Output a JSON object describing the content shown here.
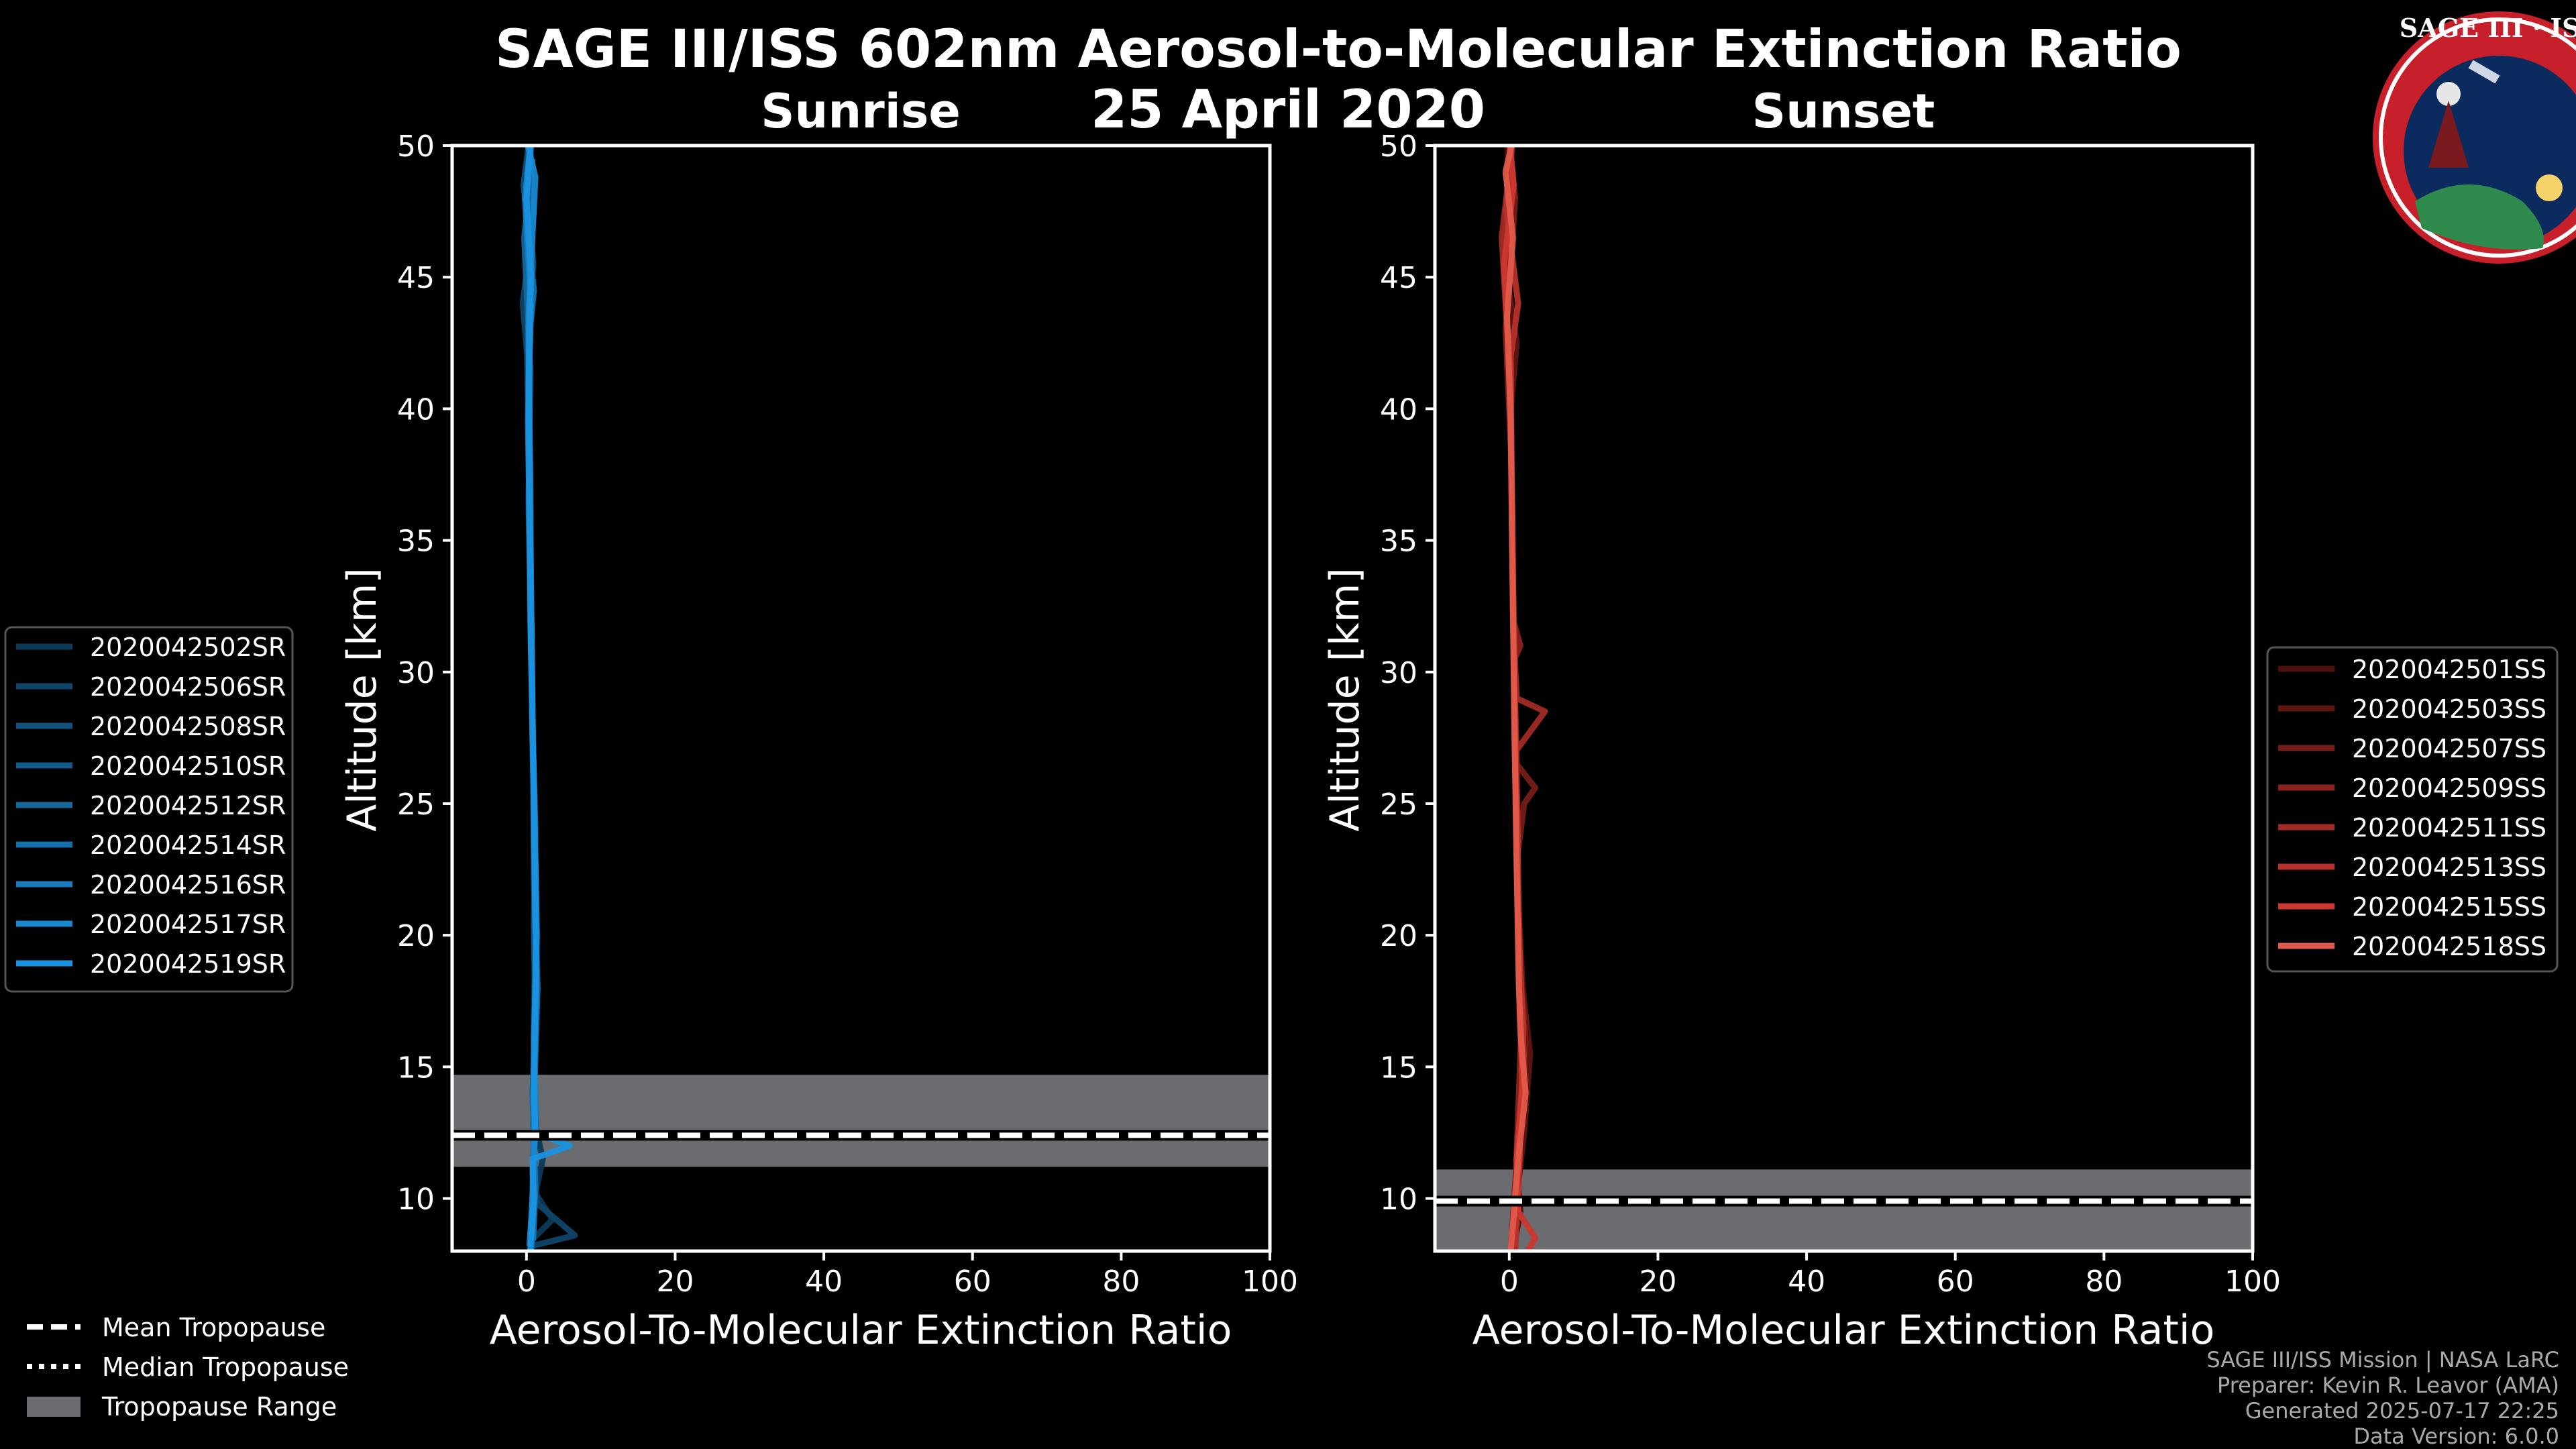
{
  "title": "SAGE III/ISS 602nm Aerosol-to-Molecular Extinction Ratio",
  "date": "25 April 2020",
  "logo": {
    "text": "SAGE III · ISS"
  },
  "colors": {
    "background": "#000000",
    "sunrise_palette": [
      "#0d3a57",
      "#0f4568",
      "#115079",
      "#125b8a",
      "#14669b",
      "#1571ac",
      "#167cbd",
      "#1887ce",
      "#1a92df"
    ],
    "sunset_palette": [
      "#4a0e0c",
      "#5f1512",
      "#751c18",
      "#8a231e",
      "#a02a24",
      "#b5312a",
      "#cb3830",
      "#e05a4a"
    ],
    "tropopause_band": "#6b6c70",
    "text": "#ffffff",
    "footer_text": "#aaaaaa"
  },
  "chart_data": [
    {
      "name": "sunrise",
      "type": "line",
      "title": "Sunrise",
      "xlabel": "Aerosol-To-Molecular Extinction Ratio",
      "ylabel": "Altitude [km]",
      "xlim": [
        -10,
        100
      ],
      "ylim": [
        8,
        50
      ],
      "xticks": [
        0,
        20,
        40,
        60,
        80,
        100
      ],
      "yticks": [
        10,
        15,
        20,
        25,
        30,
        35,
        40,
        45,
        50
      ],
      "tropopause": {
        "mean": 12.4,
        "median": 12.4,
        "range": [
          11.2,
          14.7
        ]
      },
      "series": [
        {
          "name": "2020042502SR",
          "values": [
            [
              1.0,
              8.5
            ],
            [
              3.5,
              9.2
            ],
            [
              1.2,
              10.2
            ],
            [
              2.2,
              11.5
            ],
            [
              1.0,
              13.0
            ],
            [
              1.1,
              16.0
            ],
            [
              1.2,
              20.0
            ],
            [
              1.0,
              25.0
            ],
            [
              0.7,
              30.0
            ],
            [
              0.4,
              35.0
            ],
            [
              0.2,
              40.0
            ],
            [
              0.3,
              45.0
            ],
            [
              0.8,
              48.0
            ],
            [
              0.5,
              50.0
            ]
          ]
        },
        {
          "name": "2020042506SR",
          "values": [
            [
              0.8,
              8.2
            ],
            [
              6.5,
              8.6
            ],
            [
              1.5,
              9.8
            ],
            [
              1.0,
              11.0
            ],
            [
              0.9,
              13.5
            ],
            [
              1.0,
              17.0
            ],
            [
              1.3,
              21.0
            ],
            [
              0.9,
              26.0
            ],
            [
              0.6,
              31.0
            ],
            [
              0.3,
              36.0
            ],
            [
              0.4,
              41.0
            ],
            [
              -0.5,
              44.0
            ],
            [
              1.0,
              47.5
            ],
            [
              0.2,
              49.8
            ]
          ]
        },
        {
          "name": "2020042508SR",
          "values": [
            [
              0.5,
              8.3
            ],
            [
              1.0,
              9.5
            ],
            [
              0.8,
              11.0
            ],
            [
              1.2,
              13.0
            ],
            [
              1.0,
              15.0
            ],
            [
              1.4,
              19.0
            ],
            [
              1.1,
              23.0
            ],
            [
              0.9,
              27.0
            ],
            [
              0.5,
              32.0
            ],
            [
              0.4,
              37.0
            ],
            [
              0.1,
              42.0
            ],
            [
              0.6,
              46.0
            ],
            [
              -0.4,
              48.5
            ],
            [
              0.3,
              50.0
            ]
          ]
        },
        {
          "name": "2020042510SR",
          "values": [
            [
              0.6,
              8.0
            ],
            [
              0.9,
              10.0
            ],
            [
              1.1,
              12.0
            ],
            [
              0.8,
              14.0
            ],
            [
              1.2,
              16.5
            ],
            [
              1.0,
              20.5
            ],
            [
              1.2,
              24.0
            ],
            [
              0.8,
              28.0
            ],
            [
              0.6,
              33.0
            ],
            [
              0.5,
              38.0
            ],
            [
              0.2,
              43.0
            ],
            [
              0.9,
              45.5
            ],
            [
              0.0,
              49.0
            ]
          ]
        },
        {
          "name": "2020042512SR",
          "values": [
            [
              0.7,
              8.1
            ],
            [
              1.0,
              9.7
            ],
            [
              0.9,
              11.3
            ],
            [
              1.3,
              12.8
            ],
            [
              1.1,
              14.5
            ],
            [
              1.5,
              18.0
            ],
            [
              1.0,
              22.0
            ],
            [
              0.9,
              26.5
            ],
            [
              0.7,
              31.5
            ],
            [
              0.3,
              36.5
            ],
            [
              0.5,
              41.5
            ],
            [
              -0.3,
              46.5
            ],
            [
              0.8,
              49.5
            ]
          ]
        },
        {
          "name": "2020042514SR",
          "values": [
            [
              0.9,
              8.4
            ],
            [
              1.2,
              10.5
            ],
            [
              1.0,
              12.2
            ],
            [
              1.1,
              15.5
            ],
            [
              1.3,
              19.5
            ],
            [
              1.1,
              23.5
            ],
            [
              0.8,
              27.5
            ],
            [
              0.6,
              32.5
            ],
            [
              0.4,
              37.5
            ],
            [
              0.3,
              42.5
            ],
            [
              1.0,
              44.5
            ],
            [
              0.1,
              47.0
            ],
            [
              0.6,
              50.0
            ]
          ]
        },
        {
          "name": "2020042516SR",
          "values": [
            [
              0.4,
              8.2
            ],
            [
              0.8,
              9.9
            ],
            [
              1.0,
              11.8
            ],
            [
              0.9,
              13.8
            ],
            [
              1.2,
              17.5
            ],
            [
              1.3,
              21.5
            ],
            [
              1.0,
              25.5
            ],
            [
              0.7,
              29.5
            ],
            [
              0.5,
              34.5
            ],
            [
              0.2,
              39.5
            ],
            [
              0.6,
              44.0
            ],
            [
              -0.2,
              48.0
            ],
            [
              0.4,
              49.7
            ]
          ]
        },
        {
          "name": "2020042517SR",
          "values": [
            [
              0.6,
              8.6
            ],
            [
              0.9,
              10.8
            ],
            [
              1.2,
              13.2
            ],
            [
              1.0,
              16.0
            ],
            [
              1.4,
              20.0
            ],
            [
              1.1,
              24.5
            ],
            [
              0.8,
              28.5
            ],
            [
              0.6,
              33.5
            ],
            [
              0.4,
              38.5
            ],
            [
              0.3,
              43.5
            ],
            [
              0.7,
              46.0
            ],
            [
              1.2,
              48.8
            ],
            [
              0.2,
              50.0
            ]
          ]
        },
        {
          "name": "2020042519SR",
          "values": [
            [
              0.5,
              8.0
            ],
            [
              1.0,
              10.0
            ],
            [
              0.8,
              11.5
            ],
            [
              5.8,
              12.0
            ],
            [
              1.2,
              12.5
            ],
            [
              1.0,
              14.0
            ],
            [
              1.3,
              18.5
            ],
            [
              1.1,
              22.5
            ],
            [
              0.9,
              27.0
            ],
            [
              0.6,
              31.0
            ],
            [
              0.4,
              36.0
            ],
            [
              0.3,
              41.0
            ],
            [
              0.6,
              45.0
            ],
            [
              0.0,
              48.0
            ],
            [
              0.5,
              50.0
            ]
          ]
        }
      ]
    },
    {
      "name": "sunset",
      "type": "line",
      "title": "Sunset",
      "xlabel": "Aerosol-To-Molecular Extinction Ratio",
      "ylabel": "Altitude [km]",
      "xlim": [
        -10,
        100
      ],
      "ylim": [
        8,
        50
      ],
      "xticks": [
        0,
        20,
        40,
        60,
        80,
        100
      ],
      "yticks": [
        10,
        15,
        20,
        25,
        30,
        35,
        40,
        45,
        50
      ],
      "tropopause": {
        "mean": 9.9,
        "median": 9.9,
        "range": [
          8.0,
          11.1
        ]
      },
      "series": [
        {
          "name": "2020042501SS",
          "values": [
            [
              0.5,
              8.0
            ],
            [
              1.5,
              9.5
            ],
            [
              1.0,
              11.0
            ],
            [
              1.8,
              13.0
            ],
            [
              2.5,
              15.0
            ],
            [
              1.6,
              17.5
            ],
            [
              1.2,
              20.0
            ],
            [
              1.0,
              24.0
            ],
            [
              0.8,
              29.0
            ],
            [
              0.5,
              34.0
            ],
            [
              0.2,
              39.0
            ],
            [
              -0.5,
              44.0
            ],
            [
              0.6,
              47.0
            ],
            [
              -0.3,
              50.0
            ]
          ]
        },
        {
          "name": "2020042503SS",
          "values": [
            [
              0.4,
              8.3
            ],
            [
              1.0,
              10.0
            ],
            [
              2.0,
              12.5
            ],
            [
              2.8,
              15.5
            ],
            [
              1.8,
              18.0
            ],
            [
              1.1,
              22.0
            ],
            [
              1.0,
              26.0
            ],
            [
              0.7,
              30.0
            ],
            [
              0.4,
              35.0
            ],
            [
              0.2,
              40.0
            ],
            [
              1.0,
              42.5
            ],
            [
              -0.8,
              46.0
            ],
            [
              0.3,
              49.5
            ]
          ]
        },
        {
          "name": "2020042507SS",
          "values": [
            [
              0.6,
              8.1
            ],
            [
              1.2,
              10.5
            ],
            [
              1.5,
              13.5
            ],
            [
              2.2,
              16.0
            ],
            [
              1.4,
              19.0
            ],
            [
              1.1,
              23.0
            ],
            [
              2.0,
              25.0
            ],
            [
              3.5,
              25.6
            ],
            [
              1.0,
              26.5
            ],
            [
              0.8,
              29.0
            ],
            [
              0.5,
              33.0
            ],
            [
              0.3,
              38.0
            ],
            [
              -0.5,
              43.0
            ],
            [
              0.8,
              48.0
            ],
            [
              0.0,
              50.0
            ]
          ]
        },
        {
          "name": "2020042509SS",
          "values": [
            [
              0.3,
              8.4
            ],
            [
              0.9,
              11.0
            ],
            [
              1.3,
              14.0
            ],
            [
              1.7,
              17.0
            ],
            [
              1.2,
              21.0
            ],
            [
              1.0,
              25.0
            ],
            [
              0.7,
              30.5
            ],
            [
              1.5,
              31.0
            ],
            [
              0.5,
              32.0
            ],
            [
              0.3,
              37.0
            ],
            [
              0.1,
              41.0
            ],
            [
              -0.6,
              45.0
            ],
            [
              0.5,
              49.0
            ]
          ]
        },
        {
          "name": "2020042511SS",
          "values": [
            [
              0.5,
              8.2
            ],
            [
              1.1,
              10.2
            ],
            [
              1.4,
              12.8
            ],
            [
              2.0,
              15.0
            ],
            [
              1.5,
              18.5
            ],
            [
              1.2,
              21.5
            ],
            [
              0.9,
              27.0
            ],
            [
              4.8,
              28.5
            ],
            [
              1.0,
              29.0
            ],
            [
              0.6,
              31.5
            ],
            [
              0.4,
              36.0
            ],
            [
              0.2,
              40.5
            ],
            [
              -1.0,
              46.5
            ],
            [
              0.4,
              50.0
            ]
          ]
        },
        {
          "name": "2020042513SS",
          "values": [
            [
              0.8,
              8.0
            ],
            [
              1.3,
              10.8
            ],
            [
              1.6,
              13.2
            ],
            [
              1.9,
              16.5
            ],
            [
              1.3,
              19.5
            ],
            [
              1.1,
              24.5
            ],
            [
              0.8,
              28.0
            ],
            [
              0.5,
              33.5
            ],
            [
              0.3,
              38.5
            ],
            [
              0.2,
              42.0
            ],
            [
              1.2,
              44.0
            ],
            [
              -0.4,
              47.5
            ],
            [
              0.2,
              49.8
            ]
          ]
        },
        {
          "name": "2020042515SS",
          "values": [
            [
              2.5,
              8.0
            ],
            [
              3.5,
              8.5
            ],
            [
              1.2,
              9.5
            ],
            [
              1.0,
              11.5
            ],
            [
              1.8,
              14.5
            ],
            [
              1.4,
              17.0
            ],
            [
              1.2,
              20.5
            ],
            [
              1.0,
              23.5
            ],
            [
              0.7,
              27.5
            ],
            [
              0.5,
              32.5
            ],
            [
              0.3,
              37.5
            ],
            [
              0.1,
              41.5
            ],
            [
              -0.7,
              45.5
            ],
            [
              0.6,
              48.5
            ],
            [
              0.1,
              50.0
            ]
          ]
        },
        {
          "name": "2020042518SS",
          "values": [
            [
              0.2,
              8.0
            ],
            [
              0.5,
              9.0
            ],
            [
              0.9,
              10.5
            ],
            [
              1.4,
              12.0
            ],
            [
              2.2,
              14.0
            ],
            [
              1.6,
              16.0
            ],
            [
              1.3,
              18.0
            ],
            [
              1.0,
              22.5
            ],
            [
              0.8,
              26.0
            ],
            [
              0.6,
              30.0
            ],
            [
              0.4,
              34.5
            ],
            [
              0.2,
              39.5
            ],
            [
              -0.3,
              43.5
            ],
            [
              0.5,
              46.5
            ],
            [
              -0.5,
              49.0
            ],
            [
              0.3,
              50.0
            ]
          ]
        }
      ]
    }
  ],
  "tropopause_legend": {
    "mean": "Mean Tropopause",
    "median": "Median Tropopause",
    "range": "Tropopause Range"
  },
  "footer": {
    "mission": "SAGE III/ISS Mission | NASA LaRC",
    "preparer": "Preparer: Kevin R. Leavor (AMA)",
    "generated": "Generated 2025-07-17 22:25",
    "version": "Data Version: 6.0.0"
  }
}
